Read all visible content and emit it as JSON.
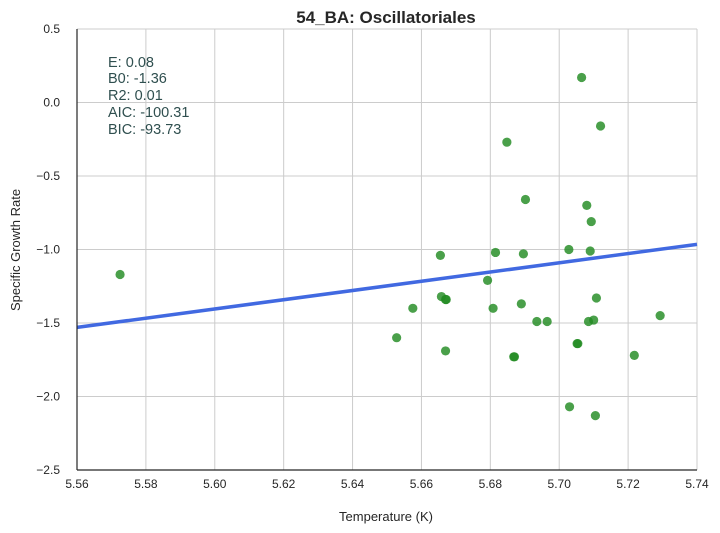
{
  "chart_data": {
    "type": "scatter",
    "title": "54_BA: Oscillatoriales",
    "xlabel": "Temperature (K)",
    "ylabel": "Specific Growth Rate",
    "xlim": [
      5.56,
      5.74
    ],
    "ylim": [
      -2.5,
      0.5
    ],
    "xticks": [
      "5.56",
      "5.58",
      "5.60",
      "5.62",
      "5.64",
      "5.66",
      "5.68",
      "5.70",
      "5.72",
      "5.74"
    ],
    "yticks": [
      "0.5",
      "0.0",
      "−0.5",
      "−1.0",
      "−1.5",
      "−2.0",
      "−2.5"
    ],
    "grid": true,
    "point_color": "#228b22",
    "line_color": "#4169e1",
    "points": [
      {
        "x": 5.5725,
        "y": -1.17
      },
      {
        "x": 5.6528,
        "y": -1.6
      },
      {
        "x": 5.6575,
        "y": -1.4
      },
      {
        "x": 5.6655,
        "y": -1.04
      },
      {
        "x": 5.6658,
        "y": -1.32
      },
      {
        "x": 5.667,
        "y": -1.34
      },
      {
        "x": 5.6672,
        "y": -1.34
      },
      {
        "x": 5.667,
        "y": -1.69
      },
      {
        "x": 5.6792,
        "y": -1.21
      },
      {
        "x": 5.6808,
        "y": -1.4
      },
      {
        "x": 5.6815,
        "y": -1.02
      },
      {
        "x": 5.6848,
        "y": -0.27
      },
      {
        "x": 5.6868,
        "y": -1.73
      },
      {
        "x": 5.687,
        "y": -1.73
      },
      {
        "x": 5.689,
        "y": -1.37
      },
      {
        "x": 5.6896,
        "y": -1.03
      },
      {
        "x": 5.6902,
        "y": -0.66
      },
      {
        "x": 5.6935,
        "y": -1.49
      },
      {
        "x": 5.6965,
        "y": -1.49
      },
      {
        "x": 5.7028,
        "y": -1.0
      },
      {
        "x": 5.703,
        "y": -2.07
      },
      {
        "x": 5.7052,
        "y": -1.64
      },
      {
        "x": 5.7054,
        "y": -1.64
      },
      {
        "x": 5.7065,
        "y": 0.17
      },
      {
        "x": 5.708,
        "y": -0.7
      },
      {
        "x": 5.7085,
        "y": -1.49
      },
      {
        "x": 5.709,
        "y": -1.01
      },
      {
        "x": 5.7093,
        "y": -0.81
      },
      {
        "x": 5.71,
        "y": -1.48
      },
      {
        "x": 5.7105,
        "y": -2.13
      },
      {
        "x": 5.7108,
        "y": -1.33
      },
      {
        "x": 5.712,
        "y": -0.16
      },
      {
        "x": 5.7218,
        "y": -1.72
      },
      {
        "x": 5.7293,
        "y": -1.45
      }
    ],
    "fit_line": {
      "x": [
        5.56,
        5.74
      ],
      "y": [
        -1.53,
        -0.965
      ]
    },
    "annotations": [
      "E:  0.08",
      "B0:  -1.36",
      "R2:  0.01",
      "AIC: -100.31",
      "BIC: -93.73"
    ]
  }
}
